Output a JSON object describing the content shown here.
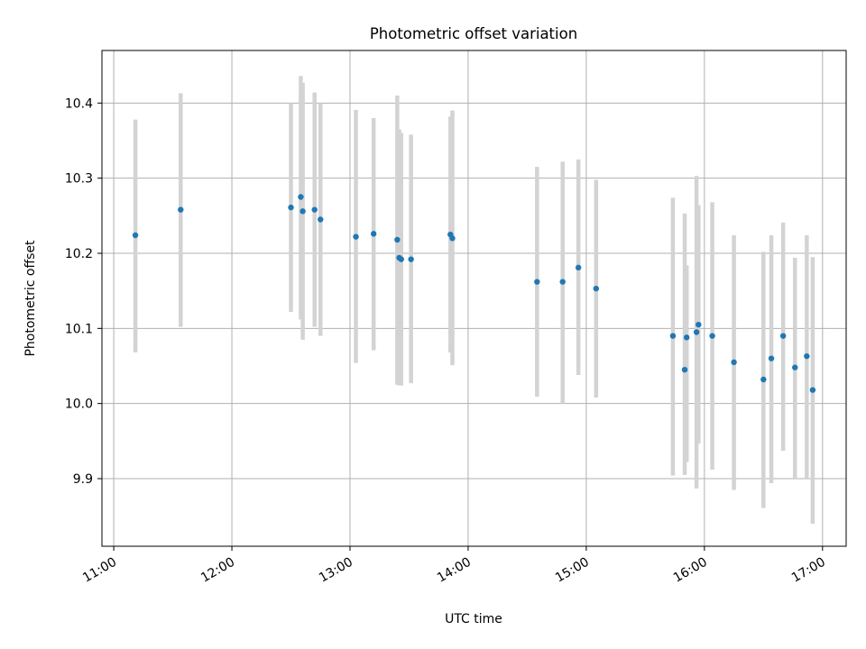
{
  "chart_data": {
    "type": "scatter",
    "title": "Photometric offset variation",
    "xlabel": "UTC time",
    "ylabel": "Photometric offset",
    "grid": true,
    "xlim": [
      "10:54",
      "17:12"
    ],
    "ylim": [
      9.81,
      10.47
    ],
    "x_ticks": [
      "11:00",
      "12:00",
      "13:00",
      "14:00",
      "15:00",
      "16:00",
      "17:00"
    ],
    "y_ticks": [
      "9.9",
      "10.0",
      "10.1",
      "10.2",
      "10.3",
      "10.4"
    ],
    "marker_color": "#1f77b4",
    "errorbar_color": "#d3d3d3",
    "points": [
      {
        "x": "11:11",
        "y": 10.224,
        "y_low": 10.068,
        "y_high": 10.378
      },
      {
        "x": "11:34",
        "y": 10.258,
        "y_low": 10.102,
        "y_high": 10.413
      },
      {
        "x": "12:30",
        "y": 10.261,
        "y_low": 10.122,
        "y_high": 10.4
      },
      {
        "x": "12:35",
        "y": 10.275,
        "y_low": 10.112,
        "y_high": 10.436
      },
      {
        "x": "12:36",
        "y": 10.256,
        "y_low": 10.085,
        "y_high": 10.427
      },
      {
        "x": "12:42",
        "y": 10.258,
        "y_low": 10.102,
        "y_high": 10.414
      },
      {
        "x": "12:45",
        "y": 10.245,
        "y_low": 10.09,
        "y_high": 10.4
      },
      {
        "x": "13:03",
        "y": 10.222,
        "y_low": 10.054,
        "y_high": 10.391
      },
      {
        "x": "13:12",
        "y": 10.226,
        "y_low": 10.071,
        "y_high": 10.38
      },
      {
        "x": "13:24",
        "y": 10.218,
        "y_low": 10.025,
        "y_high": 10.41
      },
      {
        "x": "13:25",
        "y": 10.194,
        "y_low": 10.024,
        "y_high": 10.365
      },
      {
        "x": "13:26",
        "y": 10.192,
        "y_low": 10.024,
        "y_high": 10.36
      },
      {
        "x": "13:31",
        "y": 10.192,
        "y_low": 10.027,
        "y_high": 10.358
      },
      {
        "x": "13:51",
        "y": 10.225,
        "y_low": 10.068,
        "y_high": 10.382
      },
      {
        "x": "13:52",
        "y": 10.22,
        "y_low": 10.051,
        "y_high": 10.39
      },
      {
        "x": "14:35",
        "y": 10.162,
        "y_low": 10.009,
        "y_high": 10.315
      },
      {
        "x": "14:48",
        "y": 10.162,
        "y_low": 10.0,
        "y_high": 10.322
      },
      {
        "x": "14:56",
        "y": 10.181,
        "y_low": 10.038,
        "y_high": 10.325
      },
      {
        "x": "15:05",
        "y": 10.153,
        "y_low": 10.008,
        "y_high": 10.298
      },
      {
        "x": "15:44",
        "y": 10.09,
        "y_low": 9.904,
        "y_high": 10.274
      },
      {
        "x": "15:50",
        "y": 10.045,
        "y_low": 9.905,
        "y_high": 10.253
      },
      {
        "x": "15:51",
        "y": 10.088,
        "y_low": 9.922,
        "y_high": 10.184
      },
      {
        "x": "15:56",
        "y": 10.095,
        "y_low": 9.887,
        "y_high": 10.303
      },
      {
        "x": "15:57",
        "y": 10.105,
        "y_low": 9.947,
        "y_high": 10.264
      },
      {
        "x": "16:04",
        "y": 10.09,
        "y_low": 9.912,
        "y_high": 10.268
      },
      {
        "x": "16:15",
        "y": 10.055,
        "y_low": 9.885,
        "y_high": 10.224
      },
      {
        "x": "16:30",
        "y": 10.032,
        "y_low": 9.861,
        "y_high": 10.202
      },
      {
        "x": "16:34",
        "y": 10.06,
        "y_low": 9.894,
        "y_high": 10.224
      },
      {
        "x": "16:40",
        "y": 10.09,
        "y_low": 9.937,
        "y_high": 10.241
      },
      {
        "x": "16:46",
        "y": 10.048,
        "y_low": 9.9,
        "y_high": 10.194
      },
      {
        "x": "16:52",
        "y": 10.063,
        "y_low": 9.901,
        "y_high": 10.224
      },
      {
        "x": "16:55",
        "y": 10.018,
        "y_low": 9.84,
        "y_high": 10.195
      }
    ]
  }
}
